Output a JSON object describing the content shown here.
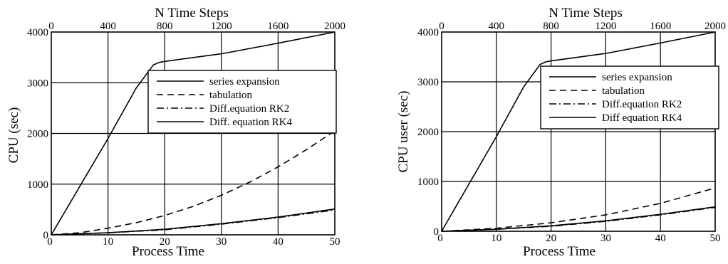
{
  "chart_data": [
    {
      "type": "line",
      "title": "",
      "xlabel": "Process Time",
      "ylabel": "CPU (sec)",
      "x2label": "N Time Steps",
      "xlim": [
        0,
        50
      ],
      "ylim": [
        0,
        4000
      ],
      "x2lim": [
        0,
        2000
      ],
      "xticks": [
        0,
        10,
        20,
        30,
        40,
        50
      ],
      "yticks": [
        0,
        1000,
        2000,
        3000,
        4000
      ],
      "x2ticks": [
        0,
        400,
        800,
        1200,
        1600,
        2000
      ],
      "grid": true,
      "legend_position": "upper-right",
      "series": [
        {
          "name": "series expansion",
          "style": "solid",
          "x": [
            0,
            5,
            10,
            15,
            18,
            19,
            20,
            30,
            40,
            50
          ],
          "y": [
            0,
            950,
            1900,
            2900,
            3350,
            3400,
            3420,
            3570,
            3780,
            4000
          ]
        },
        {
          "name": "tabulation",
          "style": "dashed",
          "x": [
            0,
            5,
            10,
            15,
            20,
            25,
            30,
            35,
            40,
            45,
            50
          ],
          "y": [
            0,
            40,
            130,
            240,
            380,
            560,
            780,
            1040,
            1340,
            1680,
            2050
          ]
        },
        {
          "name": "Diff.equation RK2",
          "style": "dashdot",
          "x": [
            0,
            10,
            20,
            30,
            40,
            50
          ],
          "y": [
            0,
            40,
            100,
            210,
            340,
            490
          ]
        },
        {
          "name": "Diff. equation RK4",
          "style": "solid",
          "x": [
            0,
            10,
            20,
            30,
            40,
            50
          ],
          "y": [
            0,
            40,
            110,
            220,
            350,
            510
          ]
        }
      ]
    },
    {
      "type": "line",
      "title": "",
      "xlabel": "Process Time",
      "ylabel": "CPU user (sec)",
      "x2label": "N Time Steps",
      "xlim": [
        0,
        50
      ],
      "ylim": [
        0,
        4000
      ],
      "x2lim": [
        0,
        2000
      ],
      "xticks": [
        0,
        10,
        20,
        30,
        40,
        50
      ],
      "yticks": [
        0,
        1000,
        2000,
        3000,
        4000
      ],
      "x2ticks": [
        0,
        400,
        800,
        1200,
        1600,
        2000
      ],
      "grid": true,
      "legend_position": "upper-right",
      "series": [
        {
          "name": "series expansion",
          "style": "solid",
          "x": [
            0,
            5,
            10,
            15,
            18,
            19,
            20,
            30,
            40,
            50
          ],
          "y": [
            0,
            950,
            1900,
            2900,
            3350,
            3400,
            3420,
            3570,
            3780,
            4000
          ]
        },
        {
          "name": "tabulation",
          "style": "dashed",
          "x": [
            0,
            10,
            20,
            30,
            40,
            50
          ],
          "y": [
            0,
            60,
            170,
            330,
            560,
            870
          ]
        },
        {
          "name": "Diff.equation RK2",
          "style": "dashdot",
          "x": [
            0,
            10,
            20,
            30,
            40,
            50
          ],
          "y": [
            0,
            40,
            100,
            200,
            330,
            480
          ]
        },
        {
          "name": "Diff equation RK4",
          "style": "solid",
          "x": [
            0,
            10,
            20,
            30,
            40,
            50
          ],
          "y": [
            0,
            40,
            110,
            210,
            340,
            490
          ]
        }
      ]
    }
  ]
}
